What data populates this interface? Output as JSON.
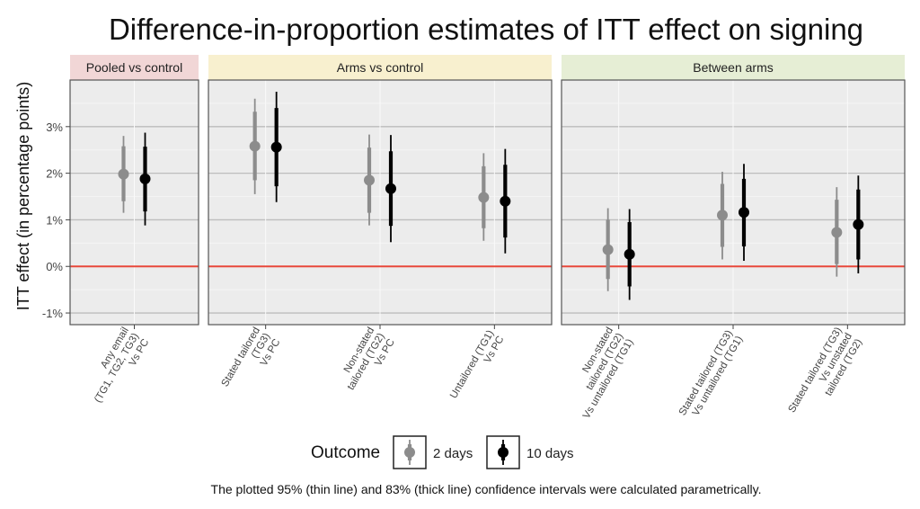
{
  "chart_data": {
    "type": "scatter",
    "title": "Difference-in-proportion estimates of ITT effect on signing",
    "ylabel": "ITT effect (in percentage points)",
    "xlabel": "",
    "ylim": [
      -1.25,
      4.0
    ],
    "yticks": [
      -1,
      0,
      1,
      2,
      3
    ],
    "ytick_labels": [
      "-1%",
      "0%",
      "1%",
      "2%",
      "3%"
    ],
    "reference_line": {
      "y": 0,
      "color": "#e8483b"
    },
    "grid": true,
    "panels": [
      {
        "label": "Pooled vs control",
        "strip_color": "#f1d6d6",
        "categories": [
          {
            "label_lines": [
              "Any email",
              "(TG1, TG2, TG3)",
              "Vs PC"
            ]
          }
        ]
      },
      {
        "label": "Arms vs control",
        "strip_color": "#f8f0cf",
        "categories": [
          {
            "label_lines": [
              "Stated tailored",
              "(TG3)",
              "Vs PC"
            ]
          },
          {
            "label_lines": [
              "Non-stated",
              "tailored (TG2)",
              "Vs PC"
            ]
          },
          {
            "label_lines": [
              "Untailored (TG1)",
              "Vs PC"
            ]
          }
        ]
      },
      {
        "label": "Between arms",
        "strip_color": "#e6eed5",
        "categories": [
          {
            "label_lines": [
              "Non-stated",
              "tailored (TG2)",
              "Vs untailored (TG1)"
            ]
          },
          {
            "label_lines": [
              "Stated tailored (TG3)",
              "Vs untailored (TG1)"
            ]
          },
          {
            "label_lines": [
              "Stated tailored (TG3)",
              "Vs unstated",
              "tailored (TG2)"
            ]
          }
        ]
      }
    ],
    "series": [
      {
        "name": "2 days",
        "color": "#8c8c8c",
        "points": [
          {
            "panel": 0,
            "cat": 0,
            "est": 1.98,
            "ci95": [
              1.15,
              2.8
            ],
            "ci83": [
              1.4,
              2.58
            ]
          },
          {
            "panel": 1,
            "cat": 0,
            "est": 2.58,
            "ci95": [
              1.55,
              3.6
            ],
            "ci83": [
              1.85,
              3.32
            ]
          },
          {
            "panel": 1,
            "cat": 1,
            "est": 1.85,
            "ci95": [
              0.88,
              2.83
            ],
            "ci83": [
              1.15,
              2.55
            ]
          },
          {
            "panel": 1,
            "cat": 2,
            "est": 1.48,
            "ci95": [
              0.55,
              2.43
            ],
            "ci83": [
              0.82,
              2.15
            ]
          },
          {
            "panel": 2,
            "cat": 0,
            "est": 0.36,
            "ci95": [
              -0.53,
              1.25
            ],
            "ci83": [
              -0.27,
              1.0
            ]
          },
          {
            "panel": 2,
            "cat": 1,
            "est": 1.1,
            "ci95": [
              0.15,
              2.03
            ],
            "ci83": [
              0.42,
              1.77
            ]
          },
          {
            "panel": 2,
            "cat": 2,
            "est": 0.73,
            "ci95": [
              -0.22,
              1.7
            ],
            "ci83": [
              0.05,
              1.43
            ]
          }
        ]
      },
      {
        "name": "10 days",
        "color": "#000000",
        "points": [
          {
            "panel": 0,
            "cat": 0,
            "est": 1.88,
            "ci95": [
              0.88,
              2.87
            ],
            "ci83": [
              1.18,
              2.57
            ]
          },
          {
            "panel": 1,
            "cat": 0,
            "est": 2.56,
            "ci95": [
              1.38,
              3.75
            ],
            "ci83": [
              1.72,
              3.4
            ]
          },
          {
            "panel": 1,
            "cat": 1,
            "est": 1.67,
            "ci95": [
              0.52,
              2.82
            ],
            "ci83": [
              0.87,
              2.47
            ]
          },
          {
            "panel": 1,
            "cat": 2,
            "est": 1.4,
            "ci95": [
              0.28,
              2.52
            ],
            "ci83": [
              0.62,
              2.18
            ]
          },
          {
            "panel": 2,
            "cat": 0,
            "est": 0.26,
            "ci95": [
              -0.72,
              1.23
            ],
            "ci83": [
              -0.43,
              0.95
            ]
          },
          {
            "panel": 2,
            "cat": 1,
            "est": 1.16,
            "ci95": [
              0.12,
              2.2
            ],
            "ci83": [
              0.43,
              1.88
            ]
          },
          {
            "panel": 2,
            "cat": 2,
            "est": 0.9,
            "ci95": [
              -0.15,
              1.95
            ],
            "ci83": [
              0.15,
              1.65
            ]
          }
        ]
      }
    ],
    "legend": {
      "title": "Outcome",
      "position": "bottom",
      "entries": [
        "2 days",
        "10 days"
      ]
    },
    "caption": "The plotted 95% (thin line) and 83% (thick line) confidence intervals were calculated parametrically."
  }
}
